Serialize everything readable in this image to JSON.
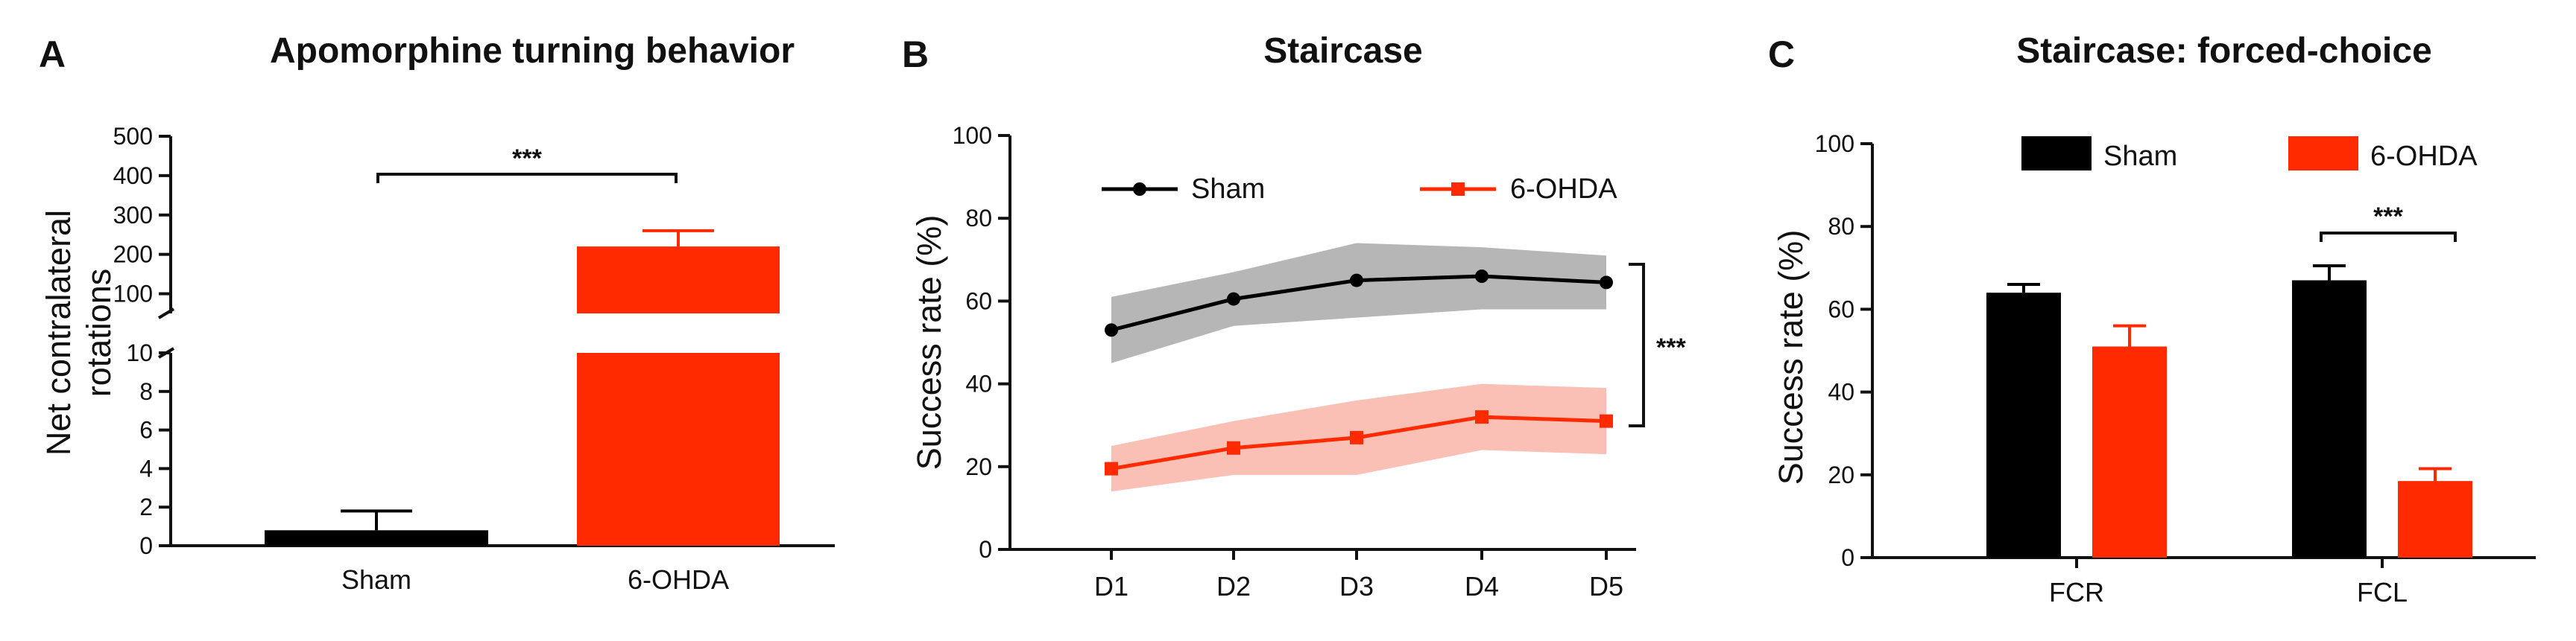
{
  "colors": {
    "sham": "#000000",
    "ohda": "#ff2a00",
    "sham_band": "#a9a9a9",
    "ohda_band": "#f9b4a8"
  },
  "chart_data": [
    {
      "panel": "A",
      "type": "bar",
      "title": "Apomorphine turning behavior",
      "xlabel": "",
      "ylabel": "Net contralateral rotations",
      "ylabel_lines": [
        "Net contralateral",
        "rotations"
      ],
      "broken_axis": true,
      "ylim_lower": [
        0,
        10
      ],
      "ylim_upper": [
        50,
        500
      ],
      "yticks_lower": [
        0,
        2,
        4,
        6,
        8,
        10
      ],
      "yticks_upper": [
        100,
        200,
        300,
        400,
        500
      ],
      "categories": [
        "Sham",
        "6-OHDA"
      ],
      "values": [
        0.8,
        220
      ],
      "errors": [
        1.0,
        40
      ],
      "annotations": [
        {
          "text": "***",
          "between": [
            "Sham",
            "6-OHDA"
          ]
        }
      ]
    },
    {
      "panel": "B",
      "type": "line",
      "title": "Staircase",
      "xlabel": "",
      "ylabel": "Success rate (%)",
      "ylim": [
        0,
        100
      ],
      "yticks": [
        0,
        20,
        40,
        60,
        80,
        100
      ],
      "x": [
        "D1",
        "D2",
        "D3",
        "D4",
        "D5"
      ],
      "series": [
        {
          "name": "Sham",
          "values": [
            53,
            60.5,
            65,
            66,
            64.5
          ],
          "lower": [
            45,
            54,
            56,
            58,
            58
          ],
          "upper": [
            61,
            67,
            74,
            73,
            71
          ]
        },
        {
          "name": "6-OHDA",
          "values": [
            19.5,
            24.5,
            27,
            32,
            31
          ],
          "lower": [
            14,
            18,
            18,
            24,
            23
          ],
          "upper": [
            25,
            31,
            36,
            40,
            39
          ]
        }
      ],
      "legend_location": "top",
      "annotations": [
        {
          "text": "***",
          "between": [
            "Sham",
            "6-OHDA"
          ]
        }
      ]
    },
    {
      "panel": "C",
      "type": "bar",
      "title": "Staircase: forced-choice",
      "xlabel": "",
      "ylabel": "Success rate (%)",
      "ylim": [
        0,
        100
      ],
      "yticks": [
        0,
        20,
        40,
        60,
        80,
        100
      ],
      "categories": [
        "FCR",
        "FCL"
      ],
      "series": [
        {
          "name": "Sham",
          "values": [
            64,
            67
          ],
          "errors": [
            2,
            3.5
          ]
        },
        {
          "name": "6-OHDA",
          "values": [
            51,
            18.5
          ],
          "errors": [
            5,
            3
          ]
        }
      ],
      "legend_location": "top",
      "annotations": [
        {
          "text": "***",
          "category": "FCL"
        }
      ]
    }
  ]
}
